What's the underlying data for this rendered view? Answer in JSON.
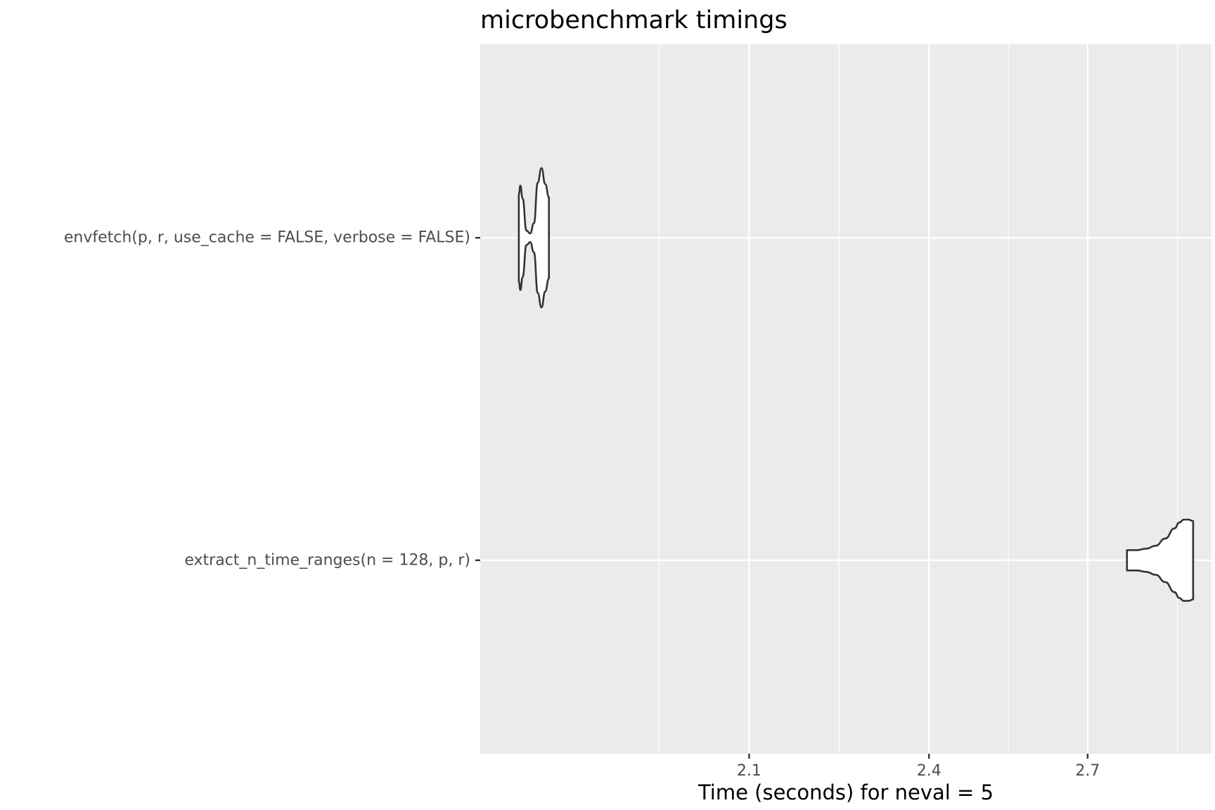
{
  "chart_data": {
    "type": "violin",
    "orientation": "horizontal",
    "title": "microbenchmark timings",
    "xlabel": "Time (seconds) for neval = 5",
    "ylabel": "",
    "x_scale": "log10",
    "xlim": [
      1.72,
      2.96
    ],
    "x_ticks": [
      2.1,
      2.4,
      2.7
    ],
    "x_tick_labels": [
      "2.1",
      "2.4",
      "2.7"
    ],
    "categories": [
      "envfetch(p, r, use_cache = FALSE, verbose = FALSE)",
      "extract_n_time_ranges(n = 128, p, r)"
    ],
    "series": [
      {
        "category": "envfetch(p, r, use_cache = FALSE, verbose = FALSE)",
        "min": 1.77,
        "max": 1.81,
        "profile": [
          [
            1.77,
            0.3
          ],
          [
            1.772,
            0.36
          ],
          [
            1.775,
            0.27
          ],
          [
            1.78,
            0.05
          ],
          [
            1.785,
            0.03
          ],
          [
            1.79,
            0.1
          ],
          [
            1.795,
            0.38
          ],
          [
            1.8,
            0.48
          ],
          [
            1.805,
            0.37
          ],
          [
            1.81,
            0.28
          ]
        ]
      },
      {
        "category": "extract_n_time_ranges(n = 128, p, r)",
        "min": 2.78,
        "max": 2.92,
        "profile": [
          [
            2.78,
            0.07
          ],
          [
            2.8,
            0.07
          ],
          [
            2.82,
            0.08
          ],
          [
            2.84,
            0.1
          ],
          [
            2.86,
            0.15
          ],
          [
            2.88,
            0.22
          ],
          [
            2.89,
            0.26
          ],
          [
            2.9,
            0.28
          ],
          [
            2.91,
            0.28
          ],
          [
            2.92,
            0.27
          ]
        ]
      }
    ],
    "grid": true,
    "panel_background": "#ebebeb",
    "grid_color": "#ffffff",
    "violin_fill": "#ffffff",
    "violin_stroke": "#333333"
  }
}
